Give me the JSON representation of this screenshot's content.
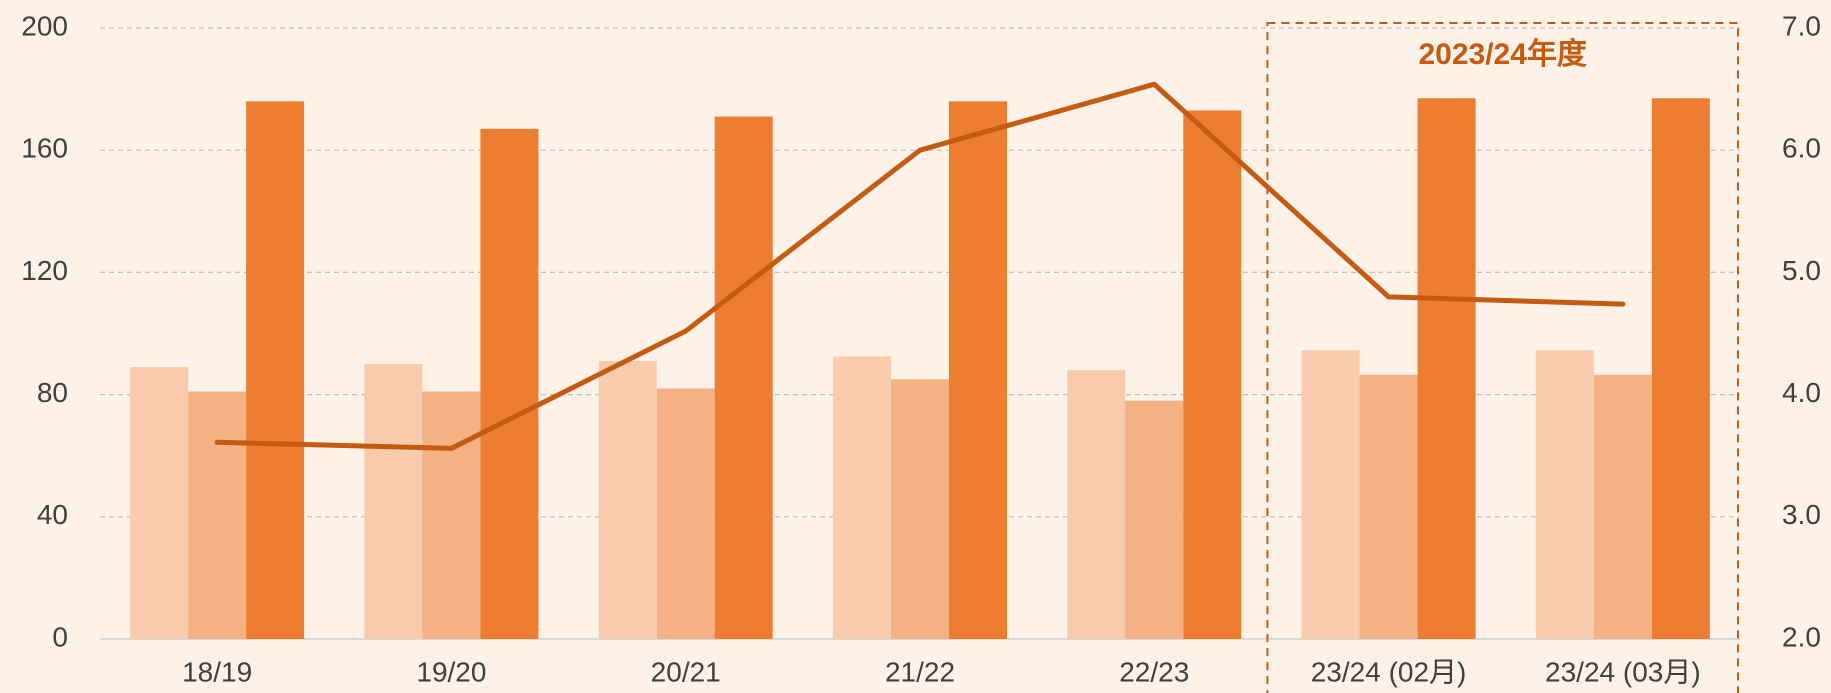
{
  "chart_data": {
    "type": "bar",
    "categories": [
      "18/19",
      "19/20",
      "20/21",
      "21/22",
      "22/23",
      "23/24 (02月)",
      "23/24 (03月)"
    ],
    "series": [
      {
        "color": "#f8cbad",
        "values": [
          89,
          90,
          91,
          92.5,
          88,
          94.5,
          94.5
        ]
      },
      {
        "color": "#f4b183",
        "values": [
          81,
          81,
          82,
          85,
          78,
          86.5,
          86.5
        ]
      },
      {
        "color": "#ed7d31",
        "values": [
          176,
          167,
          171,
          176,
          173,
          177,
          177
        ]
      },
      {
        "type": "line",
        "axis": "y2",
        "color": "#c55a11",
        "values": [
          3.61,
          3.56,
          4.52,
          6.0,
          6.54,
          4.8,
          4.74
        ]
      }
    ],
    "ylim": [
      0,
      200
    ],
    "yticks": [
      0,
      40,
      80,
      120,
      160,
      200
    ],
    "y2lim": [
      2,
      7
    ],
    "y2ticks": [
      {
        "value": 2,
        "label": "2.0"
      },
      {
        "value": 3,
        "label": "3.0"
      },
      {
        "value": 4,
        "label": "4.0"
      },
      {
        "value": 5,
        "label": "5.0"
      },
      {
        "value": 6,
        "label": "6.0"
      },
      {
        "value": 7,
        "label": "7.0"
      }
    ],
    "grid": true,
    "annotation": "2023/24年度"
  }
}
